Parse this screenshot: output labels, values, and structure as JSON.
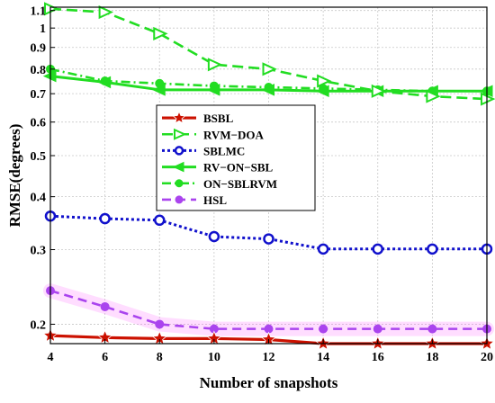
{
  "chart_data": {
    "type": "line",
    "xlabel": "Number of snapshots",
    "ylabel": "RMSE(degrees)",
    "xlim": [
      4,
      20
    ],
    "ylim": [
      0.18,
      1.12
    ],
    "yscale": "log",
    "grid": true,
    "legend_position": "center-left",
    "x": [
      4,
      6,
      8,
      10,
      12,
      14,
      16,
      18,
      20
    ],
    "x_ticks": [
      "4",
      "6",
      "8",
      "10",
      "12",
      "14",
      "16",
      "18",
      "20"
    ],
    "y_ticks": [
      {
        "value": 0.2,
        "label": "0.2"
      },
      {
        "value": 0.3,
        "label": "0.3"
      },
      {
        "value": 0.4,
        "label": "0.4"
      },
      {
        "value": 0.5,
        "label": "0.5"
      },
      {
        "value": 0.6,
        "label": "0.6"
      },
      {
        "value": 0.7,
        "label": "0.7"
      },
      {
        "value": 0.8,
        "label": "0.8"
      },
      {
        "value": 0.9,
        "label": "0.9"
      },
      {
        "value": 1.0,
        "label": "1"
      },
      {
        "value": 1.1,
        "label": "1.1"
      }
    ],
    "series": [
      {
        "name": "BSBL",
        "color": "#cc1100",
        "dash": "",
        "marker": "star",
        "width": 3.2,
        "values": [
          0.188,
          0.186,
          0.185,
          0.185,
          0.184,
          0.18,
          0.18,
          0.18,
          0.18
        ]
      },
      {
        "name": "RVM−DOA",
        "color": "#22dd22",
        "dash": "12,6",
        "marker": "triangle-right",
        "width": 2.6,
        "values": [
          1.11,
          1.09,
          0.97,
          0.82,
          0.8,
          0.75,
          0.71,
          0.69,
          0.68
        ]
      },
      {
        "name": "SBLMC",
        "color": "#1111cc",
        "dash": "3,3",
        "marker": "circle-open",
        "width": 3,
        "values": [
          0.36,
          0.355,
          0.352,
          0.322,
          0.318,
          0.301,
          0.301,
          0.301,
          0.301
        ]
      },
      {
        "name": "RV−ON−SBL",
        "color": "#22dd22",
        "dash": "",
        "marker": "triangle-left",
        "width": 3,
        "values": [
          0.77,
          0.745,
          0.715,
          0.715,
          0.715,
          0.71,
          0.71,
          0.71,
          0.71
        ]
      },
      {
        "name": "ON−SBLRVM",
        "color": "#22dd22",
        "dash": "10,4,2,4",
        "marker": "circle",
        "width": 2.6,
        "values": [
          0.8,
          0.75,
          0.74,
          0.73,
          0.725,
          0.72,
          0.715,
          0.71,
          0.71
        ]
      },
      {
        "name": "HSL",
        "color": "#aa44ee",
        "dash": "10,6",
        "marker": "circle",
        "width": 2.6,
        "values": [
          0.24,
          0.22,
          0.2,
          0.195,
          0.195,
          0.195,
          0.195,
          0.195,
          0.195
        ]
      }
    ]
  }
}
